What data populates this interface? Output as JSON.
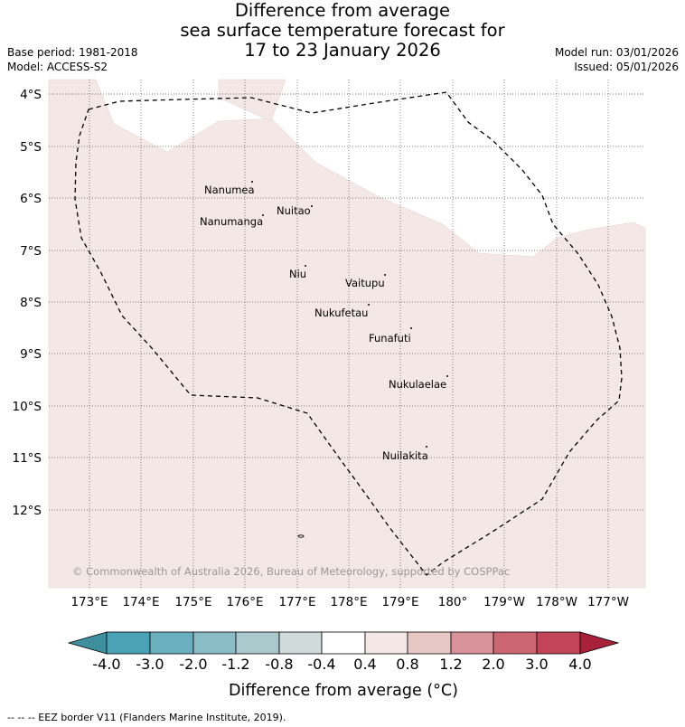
{
  "header": {
    "title_line1": "Difference from average",
    "title_line2": "sea surface temperature forecast for",
    "title_line3": "17 to 23 January 2026",
    "base_period": "Base period: 1981-2018",
    "model": "Model: ACCESS-S2",
    "model_run": "Model run: 03/01/2026",
    "issued": "Issued: 05/01/2026"
  },
  "map": {
    "lat_labels": [
      "4°S",
      "5°S",
      "6°S",
      "7°S",
      "8°S",
      "9°S",
      "10°S",
      "11°S",
      "12°S"
    ],
    "lon_labels": [
      "173°E",
      "174°E",
      "175°E",
      "176°E",
      "177°E",
      "178°E",
      "179°E",
      "180°",
      "179°W",
      "178°W",
      "177°W"
    ],
    "islands": [
      {
        "name": "Nanumea"
      },
      {
        "name": "Nuitao"
      },
      {
        "name": "Nanumanga"
      },
      {
        "name": "Niu"
      },
      {
        "name": "Vaitupu"
      },
      {
        "name": "Nukufetau"
      },
      {
        "name": "Funafuti"
      },
      {
        "name": "Nukulaelae"
      },
      {
        "name": "Nuilakita"
      }
    ],
    "copyright": "© Commonwealth of Australia 2026, Bureau of Meteorology, supported by COSPPac",
    "fill_color": "#f4e8e6",
    "anomaly_bin_shown": "0.4 to 0.8"
  },
  "colorbar": {
    "ticks": [
      "-4.0",
      "-3.0",
      "-2.0",
      "-1.2",
      "-0.8",
      "-0.4",
      "0.4",
      "0.8",
      "1.2",
      "2.0",
      "3.0",
      "4.0"
    ],
    "colors": [
      "#3f8f9e",
      "#4aa3b5",
      "#6aafbf",
      "#8bbdc7",
      "#a9c9cc",
      "#d0dadb",
      "#ffffff",
      "#f4e8e6",
      "#e8c8c4",
      "#d89299",
      "#cc6672",
      "#c14556",
      "#a8203a"
    ],
    "title": "Difference from average (°C)"
  },
  "footnote": "--  --  -- EEZ border V11 (Flanders Marine Institute, 2019)."
}
